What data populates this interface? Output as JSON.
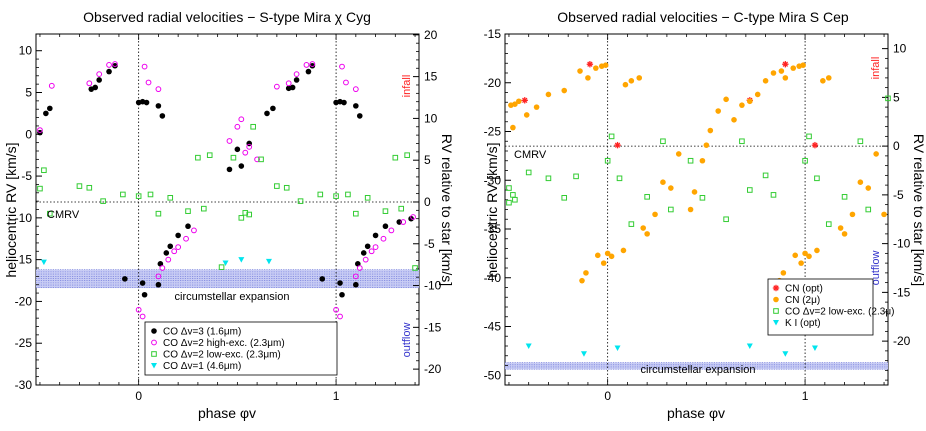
{
  "chart_data": [
    {
      "type": "scatter",
      "title": "Observed radial velocities  −  S-type Mira  χ Cyg",
      "xlabel": "phase  φv",
      "ylabel": "heliocentric RV   [km/s]",
      "y2label": "RV relative to star   [km/s]",
      "xlim": [
        -0.52,
        1.42
      ],
      "xticks": [
        0,
        1
      ],
      "ylim": [
        -30,
        12
      ],
      "yticks": [
        -30,
        -25,
        -20,
        -15,
        -10,
        -5,
        0,
        5,
        10
      ],
      "y2offset": -8.1,
      "y2ticks": [
        -20,
        -15,
        -10,
        -5,
        0,
        5,
        10,
        15,
        20
      ],
      "cmrv": -8.1,
      "cmrv_label": "CMRV",
      "phase_lines": [
        0,
        1
      ],
      "band": {
        "y": [
          -16.2,
          -18.4
        ],
        "label": "circumstellar expansion"
      },
      "infall_label": "infall",
      "outflow_label": "outflow",
      "series": [
        {
          "name": "CO Δv=3 (1.6μm)",
          "marker": "filled",
          "color": "#000000",
          "points": [
            [
              -0.5,
              0.2
            ],
            [
              -0.47,
              2.5
            ],
            [
              -0.45,
              3.1
            ],
            [
              -0.24,
              5.4
            ],
            [
              -0.22,
              5.6
            ],
            [
              -0.2,
              6.5
            ],
            [
              -0.15,
              7.5
            ],
            [
              -0.12,
              8.2
            ],
            [
              -0.07,
              -17.3
            ],
            [
              0.0,
              3.8
            ],
            [
              0.02,
              3.9
            ],
            [
              0.04,
              3.8
            ],
            [
              0.02,
              -17.8
            ],
            [
              0.03,
              -19.2
            ],
            [
              0.1,
              3.4
            ],
            [
              0.1,
              -18.0
            ],
            [
              0.12,
              2.2
            ],
            [
              0.11,
              -15.5
            ],
            [
              0.14,
              -14.2
            ],
            [
              0.16,
              -13.4
            ],
            [
              0.2,
              -12.1
            ],
            [
              0.25,
              -11.0
            ],
            [
              0.46,
              -4.2
            ],
            [
              0.52,
              -3.8
            ],
            [
              0.5,
              -1.8
            ],
            [
              0.56,
              -1.1
            ],
            [
              0.65,
              2.5
            ],
            [
              0.68,
              3.1
            ],
            [
              0.76,
              5.5
            ],
            [
              0.78,
              5.6
            ],
            [
              0.8,
              6.5
            ],
            [
              0.86,
              7.5
            ],
            [
              0.88,
              8.2
            ],
            [
              0.93,
              -17.3
            ],
            [
              1.0,
              3.8
            ],
            [
              1.02,
              3.9
            ],
            [
              1.04,
              3.8
            ],
            [
              1.02,
              -17.8
            ],
            [
              1.03,
              -19.2
            ],
            [
              1.1,
              3.4
            ],
            [
              1.1,
              -18.0
            ],
            [
              1.12,
              2.2
            ],
            [
              1.11,
              -15.5
            ],
            [
              1.14,
              -14.2
            ],
            [
              1.16,
              -13.4
            ],
            [
              1.2,
              -12.1
            ],
            [
              1.25,
              -11.0
            ],
            [
              1.32,
              -10.5
            ],
            [
              1.38,
              -10.1
            ]
          ]
        },
        {
          "name": "CO Δv=2 high-exc. (2.3μm)",
          "marker": "open",
          "color": "#ee00ee",
          "points": [
            [
              -0.5,
              0.5
            ],
            [
              -0.44,
              5.8
            ],
            [
              -0.25,
              6.1
            ],
            [
              -0.2,
              7.2
            ],
            [
              -0.15,
              8.3
            ],
            [
              -0.12,
              8.4
            ],
            [
              0.0,
              -21.0
            ],
            [
              0.02,
              -21.8
            ],
            [
              0.03,
              8.1
            ],
            [
              0.05,
              6.2
            ],
            [
              0.1,
              5.4
            ],
            [
              0.1,
              -17.0
            ],
            [
              0.12,
              -16.0
            ],
            [
              0.15,
              -15.0
            ],
            [
              0.18,
              -14.0
            ],
            [
              0.2,
              -13.5
            ],
            [
              0.24,
              -12.5
            ],
            [
              0.28,
              -11.5
            ],
            [
              0.46,
              -0.8
            ],
            [
              0.5,
              0.9
            ],
            [
              0.52,
              1.8
            ],
            [
              0.54,
              -2.2
            ],
            [
              0.56,
              -1.5
            ],
            [
              0.6,
              -3.0
            ],
            [
              0.7,
              5.7
            ],
            [
              0.76,
              6.1
            ],
            [
              0.8,
              7.2
            ],
            [
              0.85,
              8.3
            ],
            [
              0.88,
              8.4
            ],
            [
              1.0,
              -21.0
            ],
            [
              1.02,
              -21.8
            ],
            [
              1.03,
              8.1
            ],
            [
              1.05,
              6.2
            ],
            [
              1.1,
              5.4
            ],
            [
              1.1,
              -17.0
            ],
            [
              1.12,
              -16.0
            ],
            [
              1.15,
              -15.0
            ],
            [
              1.18,
              -14.0
            ],
            [
              1.2,
              -13.5
            ],
            [
              1.24,
              -12.5
            ],
            [
              1.28,
              -11.5
            ],
            [
              1.34,
              -10.5
            ],
            [
              1.39,
              -9.9
            ]
          ]
        },
        {
          "name": "CO Δv=2 low-exc. (2.3μm)",
          "marker": "square",
          "color": "#33cc33",
          "points": [
            [
              -0.5,
              -6.5
            ],
            [
              -0.48,
              -4.3
            ],
            [
              -0.45,
              -9.5
            ],
            [
              -0.3,
              -6.2
            ],
            [
              -0.25,
              -6.4
            ],
            [
              -0.18,
              -8.0
            ],
            [
              -0.08,
              -7.2
            ],
            [
              0.0,
              -7.4
            ],
            [
              0.06,
              -7.2
            ],
            [
              0.1,
              -9.5
            ],
            [
              0.16,
              -7.6
            ],
            [
              0.25,
              -9.2
            ],
            [
              0.3,
              -2.8
            ],
            [
              0.33,
              -8.9
            ],
            [
              0.36,
              -2.5
            ],
            [
              0.42,
              -15.9
            ],
            [
              0.48,
              -2.8
            ],
            [
              0.52,
              -10.0
            ],
            [
              0.54,
              -9.4
            ],
            [
              0.56,
              -9.6
            ],
            [
              0.58,
              0.9
            ],
            [
              0.62,
              -3.0
            ],
            [
              0.7,
              -6.2
            ],
            [
              0.75,
              -6.4
            ],
            [
              0.82,
              -8.0
            ],
            [
              0.92,
              -7.2
            ],
            [
              1.0,
              -7.4
            ],
            [
              1.06,
              -7.2
            ],
            [
              1.1,
              -9.5
            ],
            [
              1.16,
              -7.6
            ],
            [
              1.25,
              -9.2
            ],
            [
              1.3,
              -2.8
            ],
            [
              1.33,
              -8.9
            ],
            [
              1.36,
              -2.5
            ],
            [
              1.4,
              -16.0
            ]
          ]
        },
        {
          "name": "CO Δv=1 (4.6μm)",
          "marker": "triangle",
          "color": "#00e5ee",
          "points": [
            [
              -0.48,
              -15.3
            ],
            [
              0.44,
              -15.4
            ],
            [
              0.52,
              -15.0
            ],
            [
              0.66,
              -15.2
            ]
          ]
        }
      ],
      "legend": {
        "placement": "bottom-right"
      }
    },
    {
      "type": "scatter",
      "title": "Observed radial velocities  −  C-type Mira  S Cep",
      "xlabel": "phase  φv",
      "ylabel": "heliocentric RV   [km/s]",
      "y2label": "RV relative to star   [km/s]",
      "xlim": [
        -0.52,
        1.42
      ],
      "xticks": [
        0,
        1
      ],
      "ylim": [
        -51,
        -15
      ],
      "yticks": [
        -50,
        -45,
        -40,
        -35,
        -30,
        -25,
        -20,
        -15
      ],
      "y2offset": -26.5,
      "y2ticks": [
        -25,
        -20,
        -15,
        -10,
        -5,
        0,
        5,
        10
      ],
      "cmrv": -26.5,
      "cmrv_label": "CMRV",
      "phase_lines": [
        0,
        1
      ],
      "band": {
        "y": [
          -48.7,
          -49.4
        ],
        "label": "circumstellar expansion"
      },
      "infall_label": "infall",
      "outflow_label": "outflow",
      "series": [
        {
          "name": "CN (opt)",
          "marker": "star",
          "color": "#ff2222",
          "points": [
            [
              -0.42,
              -21.8
            ],
            [
              -0.09,
              -18.1
            ],
            [
              0.05,
              -26.4
            ],
            [
              0.72,
              -21.8
            ],
            [
              0.9,
              -18.1
            ],
            [
              1.05,
              -26.4
            ]
          ]
        },
        {
          "name": "CN (2μ)",
          "marker": "filled",
          "color": "#ffa500",
          "points": [
            [
              -0.49,
              -22.3
            ],
            [
              -0.47,
              -22.2
            ],
            [
              -0.45,
              -21.9
            ],
            [
              -0.41,
              -23.3
            ],
            [
              -0.36,
              -22.5
            ],
            [
              -0.3,
              -21.2
            ],
            [
              -0.22,
              -20.8
            ],
            [
              -0.14,
              -18.8
            ],
            [
              -0.1,
              -19.5
            ],
            [
              -0.06,
              -18.5
            ],
            [
              -0.03,
              -18.3
            ],
            [
              -0.01,
              -18.2
            ],
            [
              -0.48,
              -24.6
            ],
            [
              -0.13,
              -40.3
            ],
            [
              -0.11,
              -39.5
            ],
            [
              -0.05,
              -37.7
            ],
            [
              -0.02,
              -38.5
            ],
            [
              0.02,
              -37.8
            ],
            [
              0.0,
              -37.5
            ],
            [
              0.08,
              -37.2
            ],
            [
              0.12,
              -19.8
            ],
            [
              0.16,
              -19.5
            ],
            [
              0.09,
              -20.2
            ],
            [
              0.18,
              -34.9
            ],
            [
              0.2,
              -35.5
            ],
            [
              0.24,
              -33.5
            ],
            [
              0.28,
              -30.2
            ],
            [
              0.32,
              -30.8
            ],
            [
              0.36,
              -27.3
            ],
            [
              0.42,
              -33.0
            ],
            [
              0.44,
              -31.2
            ],
            [
              0.48,
              -28.0
            ],
            [
              0.5,
              -26.4
            ],
            [
              0.52,
              -24.9
            ],
            [
              0.56,
              -22.9
            ],
            [
              0.6,
              -21.7
            ],
            [
              0.64,
              -23.8
            ],
            [
              0.68,
              -22.3
            ],
            [
              0.72,
              -21.9
            ],
            [
              0.76,
              -21.2
            ],
            [
              0.8,
              -19.8
            ],
            [
              0.84,
              -19.0
            ],
            [
              0.88,
              -18.8
            ],
            [
              0.9,
              -19.5
            ],
            [
              0.94,
              -18.5
            ],
            [
              0.97,
              -18.3
            ],
            [
              0.99,
              -18.2
            ],
            [
              0.87,
              -40.3
            ],
            [
              0.89,
              -39.5
            ],
            [
              0.95,
              -37.7
            ],
            [
              0.98,
              -38.5
            ],
            [
              1.02,
              -37.8
            ],
            [
              1.0,
              -37.5
            ],
            [
              1.06,
              -37.2
            ],
            [
              1.09,
              -19.8
            ],
            [
              1.12,
              -19.5
            ],
            [
              1.18,
              -34.9
            ],
            [
              1.2,
              -35.5
            ],
            [
              1.24,
              -33.5
            ],
            [
              1.28,
              -30.2
            ],
            [
              1.32,
              -30.8
            ],
            [
              1.36,
              -27.3
            ],
            [
              1.4,
              -33.5
            ]
          ]
        },
        {
          "name": "CO Δv=2 low-exc. (2.3μ)",
          "marker": "square",
          "color": "#33cc33",
          "points": [
            [
              -0.5,
              -30.8
            ],
            [
              -0.48,
              -31.5
            ],
            [
              -0.47,
              -32.0
            ],
            [
              -0.5,
              -32.3
            ],
            [
              -0.4,
              -29.2
            ],
            [
              -0.3,
              -29.8
            ],
            [
              -0.22,
              -31.8
            ],
            [
              -0.16,
              -29.6
            ],
            [
              0.0,
              -28.0
            ],
            [
              0.02,
              -25.5
            ],
            [
              0.06,
              -29.8
            ],
            [
              0.12,
              -34.5
            ],
            [
              0.2,
              -31.7
            ],
            [
              0.28,
              -26.0
            ],
            [
              0.32,
              -33.0
            ],
            [
              0.42,
              -28.0
            ],
            [
              0.48,
              -31.8
            ],
            [
              0.6,
              -34.0
            ],
            [
              0.68,
              -26.0
            ],
            [
              0.72,
              -31.0
            ],
            [
              0.8,
              -29.5
            ],
            [
              0.84,
              -31.5
            ],
            [
              1.0,
              -28.0
            ],
            [
              1.02,
              -25.5
            ],
            [
              1.06,
              -29.8
            ],
            [
              1.12,
              -34.5
            ],
            [
              1.2,
              -31.7
            ],
            [
              1.28,
              -26.0
            ],
            [
              1.32,
              -33.0
            ],
            [
              1.42,
              -21.6
            ]
          ]
        },
        {
          "name": "K I (opt)",
          "marker": "triangle",
          "color": "#00e5ee",
          "points": [
            [
              -0.4,
              -47.0
            ],
            [
              -0.12,
              -47.8
            ],
            [
              0.05,
              -47.2
            ],
            [
              0.72,
              -47.0
            ],
            [
              0.9,
              -47.8
            ],
            [
              1.05,
              -47.2
            ]
          ]
        }
      ],
      "legend": {
        "placement": "middle-right"
      }
    }
  ]
}
